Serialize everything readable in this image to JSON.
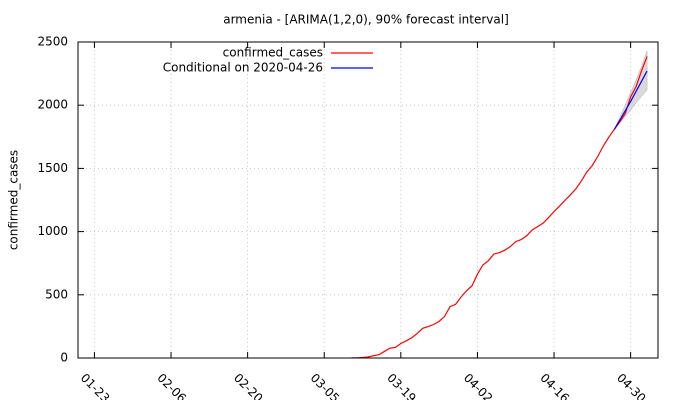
{
  "chart_data": {
    "type": "line",
    "title": "armenia -  [ARIMA(1,2,0), 90% forecast interval]",
    "y_label": "confirmed_cases",
    "xlim": [
      "01-20",
      "05-05"
    ],
    "xticks": [
      "01-23",
      "02-06",
      "02-20",
      "03-05",
      "03-19",
      "04-02",
      "04-16",
      "04-30"
    ],
    "ylim": [
      0,
      2500
    ],
    "yticks": [
      0,
      500,
      1000,
      1500,
      2000,
      2500
    ],
    "grid": true,
    "legend": "top-left",
    "series": [
      {
        "name": "confirmed_cases",
        "color": "#ff0000",
        "x": [
          "03-10",
          "03-11",
          "03-12",
          "03-13",
          "03-14",
          "03-15",
          "03-16",
          "03-17",
          "03-18",
          "03-19",
          "03-20",
          "03-21",
          "03-22",
          "03-23",
          "03-24",
          "03-25",
          "03-26",
          "03-27",
          "03-28",
          "03-29",
          "03-30",
          "03-31",
          "04-01",
          "04-02",
          "04-03",
          "04-04",
          "04-05",
          "04-06",
          "04-07",
          "04-08",
          "04-09",
          "04-10",
          "04-11",
          "04-12",
          "04-13",
          "04-14",
          "04-15",
          "04-16",
          "04-17",
          "04-18",
          "04-19",
          "04-20",
          "04-21",
          "04-22",
          "04-23",
          "04-24",
          "04-25",
          "04-26",
          "04-27",
          "04-28",
          "04-29",
          "04-30",
          "05-01",
          "05-02",
          "05-03"
        ],
        "values": [
          1,
          1,
          4,
          8,
          18,
          26,
          52,
          78,
          84,
          115,
          136,
          160,
          194,
          235,
          249,
          265,
          290,
          329,
          407,
          424,
          482,
          532,
          571,
          663,
          736,
          770,
          822,
          833,
          853,
          881,
          921,
          937,
          967,
          1013,
          1039,
          1067,
          1111,
          1159,
          1201,
          1248,
          1291,
          1339,
          1401,
          1473,
          1523,
          1596,
          1677,
          1746,
          1808,
          1867,
          1932,
          2066,
          2148,
          2273,
          2386
        ]
      },
      {
        "name": "Conditional on 2020-04-26",
        "color": "#0000ff",
        "x": [
          "04-27",
          "04-28",
          "04-29",
          "04-30",
          "05-01",
          "05-02",
          "05-03"
        ],
        "values": [
          1808,
          1880,
          1955,
          2030,
          2110,
          2190,
          2270
        ]
      }
    ],
    "interval": {
      "color": "#d9d9d9",
      "x": [
        "04-27",
        "04-28",
        "04-29",
        "04-30",
        "05-01",
        "05-02",
        "05-03"
      ],
      "lower": [
        1808,
        1860,
        1910,
        1960,
        2020,
        2070,
        2120
      ],
      "upper": [
        1808,
        1900,
        2000,
        2100,
        2200,
        2310,
        2430
      ]
    }
  }
}
